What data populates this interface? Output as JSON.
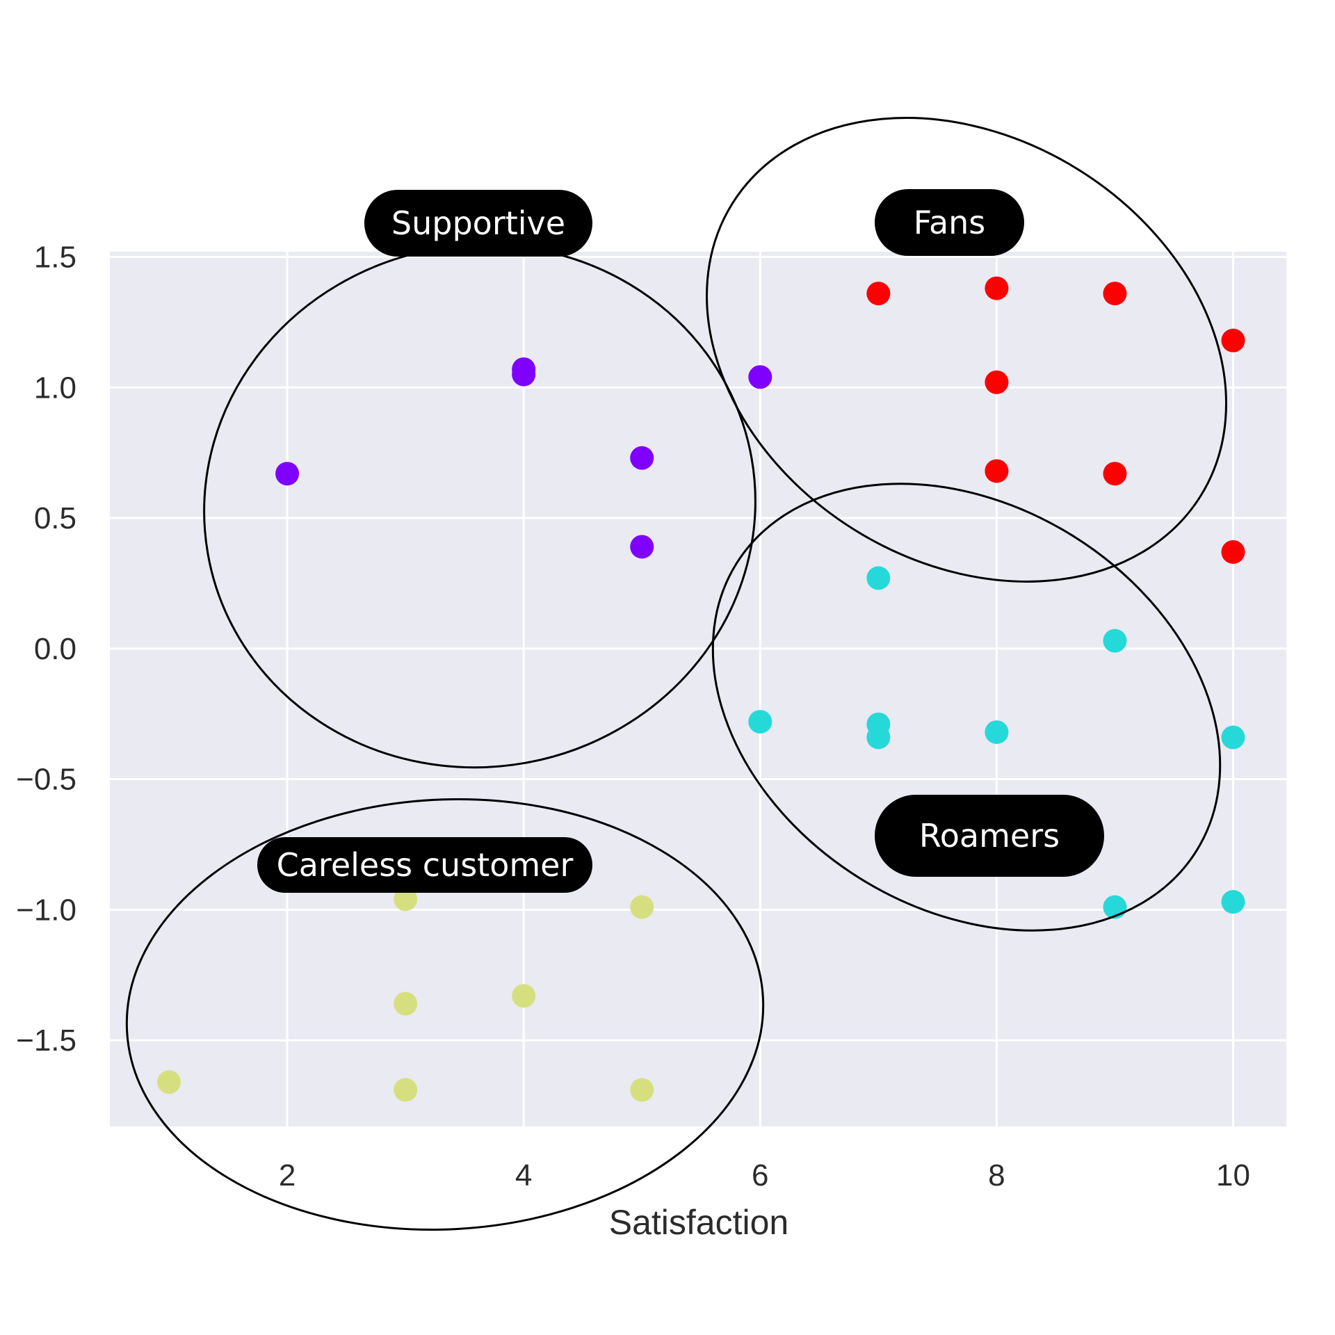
{
  "chart_data": {
    "type": "scatter",
    "title": "",
    "xlabel": "Satisfaction",
    "ylabel": "",
    "xlim": [
      0.5,
      10.45
    ],
    "ylim": [
      -1.83,
      1.52
    ],
    "xticks": [
      2,
      4,
      6,
      8,
      10
    ],
    "yticks": [
      1.5,
      1.0,
      0.5,
      0.0,
      -0.5,
      -1.0,
      -1.5
    ],
    "xtick_labels": [
      "2",
      "4",
      "6",
      "8",
      "10"
    ],
    "ytick_labels": [
      "1.5",
      "1.0",
      "0.5",
      "0.0",
      "−0.5",
      "−1.0",
      "−1.5"
    ],
    "grid": true,
    "background": "#eaeaf2",
    "series": [
      {
        "color": "#7f00ff",
        "points": [
          [
            2,
            0.67
          ],
          [
            4,
            1.07
          ],
          [
            4,
            1.05
          ],
          [
            5,
            0.73
          ],
          [
            5,
            0.39
          ],
          [
            6,
            1.04
          ]
        ]
      },
      {
        "color": "#ff0000",
        "points": [
          [
            7,
            1.36
          ],
          [
            8,
            1.38
          ],
          [
            9,
            1.36
          ],
          [
            10,
            1.18
          ],
          [
            8,
            1.02
          ],
          [
            8,
            0.68
          ],
          [
            9,
            0.67
          ],
          [
            10,
            0.37
          ]
        ]
      },
      {
        "color": "#26d9d9",
        "points": [
          [
            7,
            0.27
          ],
          [
            9,
            0.03
          ],
          [
            6,
            -0.28
          ],
          [
            7,
            -0.29
          ],
          [
            7,
            -0.34
          ],
          [
            8,
            -0.32
          ],
          [
            10,
            -0.34
          ],
          [
            9,
            -0.99
          ],
          [
            10,
            -0.97
          ]
        ]
      },
      {
        "color": "#d6df7f",
        "points": [
          [
            3,
            -0.96
          ],
          [
            5,
            -0.99
          ],
          [
            3,
            -1.36
          ],
          [
            4,
            -1.33
          ],
          [
            1,
            -1.66
          ],
          [
            3,
            -1.69
          ],
          [
            5,
            -1.69
          ]
        ]
      }
    ],
    "annotations": [
      {
        "text": "Supportive"
      },
      {
        "text": "Fans"
      },
      {
        "text": "Roamers"
      },
      {
        "text": "Careless customer"
      }
    ]
  }
}
